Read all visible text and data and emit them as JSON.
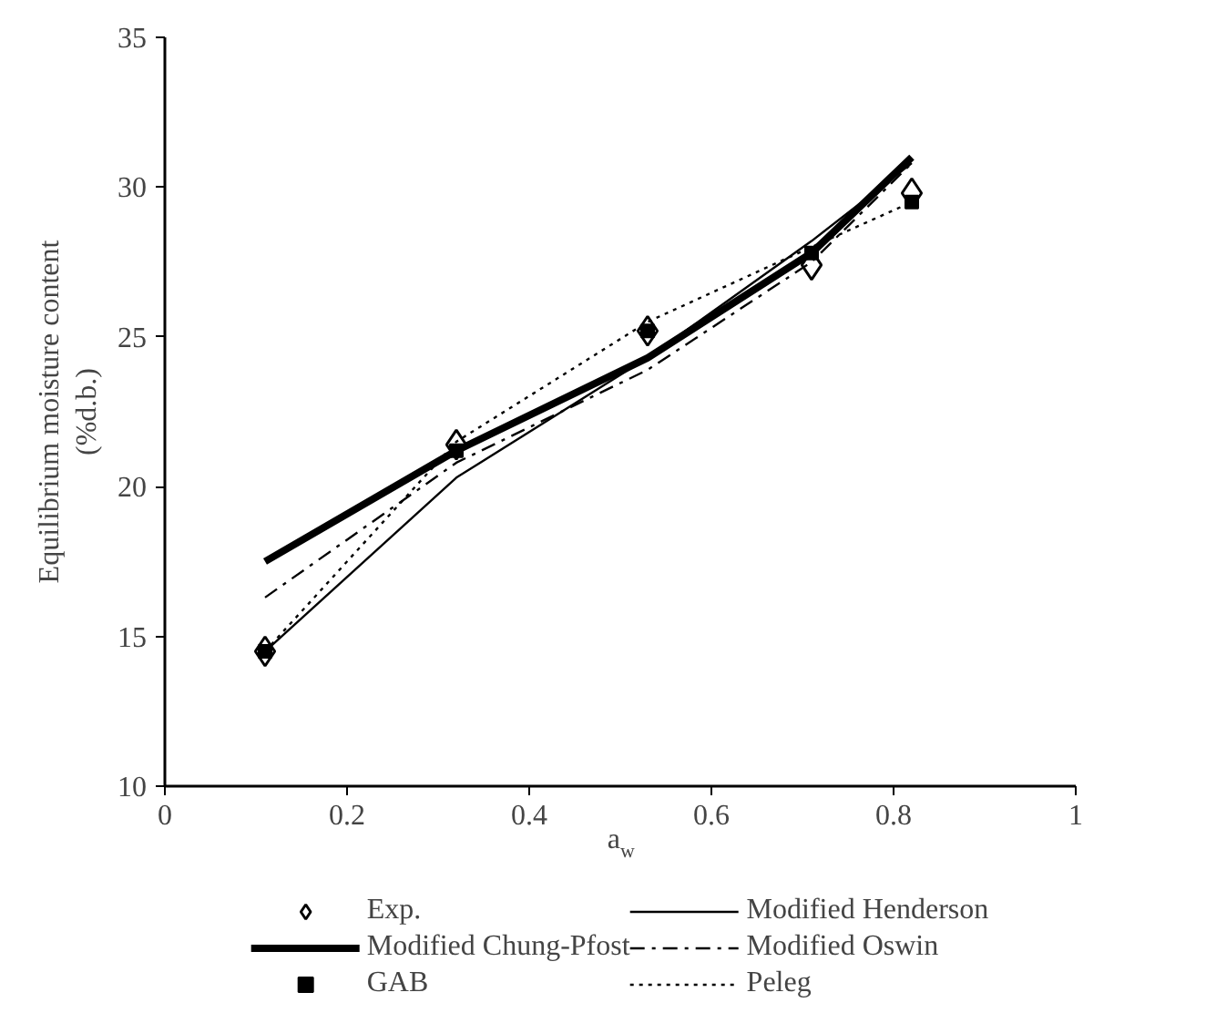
{
  "chart_data": {
    "type": "line",
    "xlabel": "a$_{w}$",
    "ylabel": "Equilibrium moisture content\n(%d.b.)",
    "x": [
      0.11,
      0.32,
      0.53,
      0.71,
      0.82
    ],
    "xlim": [
      0,
      1
    ],
    "xticks": [
      0,
      0.2,
      0.4,
      0.6,
      0.8,
      1
    ],
    "ylim": [
      10,
      35
    ],
    "yticks": [
      10,
      15,
      20,
      25,
      30,
      35
    ],
    "grid": false,
    "legend": "bottom",
    "series": [
      {
        "name": "Exp.",
        "type": "scatter",
        "marker": "diamond",
        "color": "#000000",
        "values": [
          14.5,
          21.4,
          25.2,
          27.4,
          29.8
        ]
      },
      {
        "name": "Modified Chung-Pfost",
        "color": "#000000",
        "line_style": "solid",
        "values": [
          17.5,
          21.2,
          24.3,
          27.8,
          31.0
        ]
      },
      {
        "name": "GAB",
        "type": "scatter",
        "marker": "square",
        "color": "#000000",
        "values": [
          14.5,
          21.2,
          25.2,
          27.8,
          29.5
        ]
      },
      {
        "name": "Modified Henderson",
        "color": "#000000",
        "line_style": "solid",
        "values": [
          14.5,
          20.3,
          24.3,
          28.2,
          30.8
        ]
      },
      {
        "name": "Modified Oswin",
        "color": "#000000",
        "line_style": "dashdot",
        "values": [
          16.3,
          20.8,
          23.9,
          27.5,
          30.8
        ]
      },
      {
        "name": "Peleg",
        "color": "#000000",
        "line_style": "dotted",
        "values": [
          14.5,
          21.5,
          25.5,
          28.0,
          29.5
        ]
      }
    ]
  }
}
